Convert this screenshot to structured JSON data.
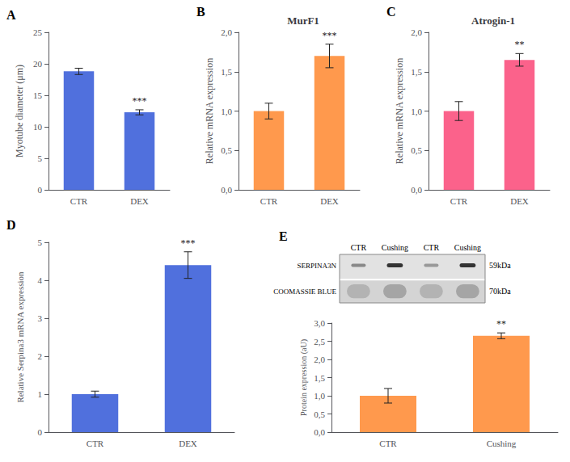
{
  "chart_data": [
    {
      "type": "bar",
      "panel_label": "A",
      "categories": [
        "CTR",
        "DEX"
      ],
      "values": [
        18.8,
        12.3
      ],
      "errors": [
        0.5,
        0.4
      ],
      "ylabel": "Myotube diameter (μm)",
      "ylim": [
        0,
        25
      ],
      "yticks": [
        0,
        5,
        10,
        15,
        20,
        25
      ],
      "annotations": [
        {
          "category": "DEX",
          "text": "***"
        }
      ],
      "grid": false
    },
    {
      "type": "bar",
      "panel_label": "B",
      "title": "MurF1",
      "categories": [
        "CTR",
        "DEX"
      ],
      "values": [
        1.0,
        1.7
      ],
      "errors": [
        0.1,
        0.15
      ],
      "ylabel": "Relative mRNA expression",
      "ylim": [
        0,
        2.0
      ],
      "yticks": [
        {
          "value": 0.0,
          "label": "0,0"
        },
        {
          "value": 0.5,
          "label": "0,5"
        },
        {
          "value": 1.0,
          "label": "1,0"
        },
        {
          "value": 1.5,
          "label": "1,5"
        },
        {
          "value": 2.0,
          "label": "2,0"
        }
      ],
      "annotations": [
        {
          "category": "DEX",
          "text": "***"
        }
      ],
      "grid": false
    },
    {
      "type": "bar",
      "panel_label": "C",
      "title": "Atrogin-1",
      "categories": [
        "CTR",
        "DEX"
      ],
      "values": [
        1.0,
        1.65
      ],
      "errors": [
        0.12,
        0.08
      ],
      "ylabel": "Relative mRNA expression",
      "ylim": [
        0,
        2.0
      ],
      "yticks": [
        {
          "value": 0.0,
          "label": "0,0"
        },
        {
          "value": 0.5,
          "label": "0,5"
        },
        {
          "value": 1.0,
          "label": "1,0"
        },
        {
          "value": 1.5,
          "label": "1,5"
        },
        {
          "value": 2.0,
          "label": "2,0"
        }
      ],
      "annotations": [
        {
          "category": "DEX",
          "text": "**"
        }
      ],
      "grid": false
    },
    {
      "type": "bar",
      "panel_label": "D",
      "categories": [
        "CTR",
        "DEX"
      ],
      "values": [
        1.0,
        4.4
      ],
      "errors": [
        0.08,
        0.35
      ],
      "ylabel": "Relative Serpina3 mRNA expression",
      "ylim": [
        0,
        5
      ],
      "yticks": [
        0,
        1,
        2,
        3,
        4,
        5
      ],
      "annotations": [
        {
          "category": "DEX",
          "text": "***"
        }
      ],
      "grid": false
    },
    {
      "type": "blot",
      "panel_label": "E",
      "lanes": [
        "CTR",
        "Cushing",
        "CTR",
        "Cushing"
      ],
      "rows": [
        {
          "label": "SERPINA3N",
          "annotation": "59kDa"
        },
        {
          "label": "COOMASSIE BLUE",
          "annotation": "70kDa"
        }
      ]
    },
    {
      "type": "bar",
      "categories": [
        "CTR",
        "Cushing"
      ],
      "values": [
        1.0,
        2.65
      ],
      "errors": [
        0.2,
        0.08
      ],
      "ylabel": "Protein expression (aU)",
      "ylim": [
        0,
        3.0
      ],
      "yticks": [
        {
          "value": 0.0,
          "label": "0,0"
        },
        {
          "value": 0.5,
          "label": "0,5"
        },
        {
          "value": 1.0,
          "label": "1,0"
        },
        {
          "value": 1.5,
          "label": "1,5"
        },
        {
          "value": 2.0,
          "label": "2,0"
        },
        {
          "value": 2.5,
          "label": "2,5"
        },
        {
          "value": 3.0,
          "label": "3,0"
        }
      ],
      "annotations": [
        {
          "category": "Cushing",
          "text": "**"
        }
      ],
      "grid": false
    }
  ]
}
